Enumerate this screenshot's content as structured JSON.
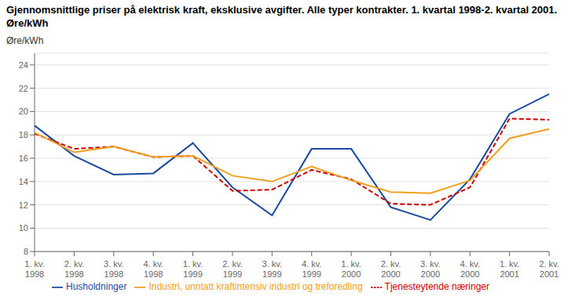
{
  "chart_data": {
    "type": "line",
    "title": "Gjennomsnittlige priser på elektrisk kraft, eksklusive avgifter. Alle typer kontrakter. 1. kvartal 1998-2. kvartal 2001. Øre/kWh",
    "y_label": "Øre/kWh",
    "categories": [
      "1. kv.\n1998",
      "2. kv.\n1998",
      "3. kv.\n1998",
      "4. kv.\n1998",
      "1. kv.\n1999",
      "2. kv.\n1999",
      "3. kv.\n1999",
      "4. kv.\n1999",
      "1. kv.\n2000",
      "2. kv.\n2000",
      "3. kv.\n2000",
      "4. kv.\n2000",
      "1. kv.\n2001",
      "2. kv.\n2001"
    ],
    "series": [
      {
        "name": "Husholdninger",
        "color": "#1c4b9e",
        "line_style": "solid",
        "values": [
          18.8,
          16.2,
          14.6,
          14.7,
          17.3,
          13.5,
          11.1,
          16.8,
          16.8,
          11.8,
          10.7,
          14.2,
          19.8,
          21.5
        ]
      },
      {
        "name": "Tjenesteytende næringer",
        "color": "#cc0000",
        "line_style": "dashed",
        "values": [
          18.1,
          16.8,
          17.0,
          16.1,
          16.2,
          13.2,
          13.3,
          15.0,
          14.2,
          12.1,
          12.0,
          13.5,
          19.4,
          19.3
        ]
      },
      {
        "name": "Industri, unntatt kraftintensiv industri og treforedling",
        "color": "#f0a020",
        "line_style": "solid",
        "values": [
          18.2,
          16.5,
          17.0,
          16.1,
          16.2,
          14.5,
          14.0,
          15.3,
          14.1,
          13.1,
          13.0,
          14.1,
          17.7,
          18.5
        ]
      }
    ],
    "ylim": [
      8,
      25
    ],
    "yticks": [
      8,
      10,
      12,
      14,
      16,
      18,
      20,
      22,
      24
    ],
    "grid": true,
    "legend": "bottom"
  }
}
